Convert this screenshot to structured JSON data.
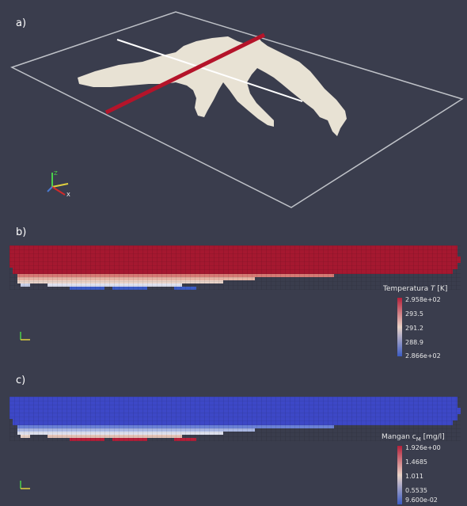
{
  "panels": {
    "a": {
      "label": "a)"
    },
    "b": {
      "label": "b)"
    },
    "c": {
      "label": "c)"
    }
  },
  "legend_temperature": {
    "title_prefix": "Temperatura ",
    "title_var": "T",
    "title_unit": " [K]",
    "ticks": [
      "2.958e+02",
      "293.5",
      "291.2",
      "288.9",
      "2.866e+02"
    ],
    "colors": [
      "#b4203a",
      "#e9d3c8",
      "#3b5bc4"
    ]
  },
  "legend_mangan": {
    "title_prefix": "Mangan c",
    "title_sub": "M",
    "title_unit": " [mg/l]",
    "ticks": [
      "1.926e+00",
      "1.4685",
      "1.011",
      "0.5535",
      "9.600e-02"
    ],
    "colors": [
      "#b4203a",
      "#e9d3c8",
      "#3b5bc4"
    ]
  },
  "axes_icons": {
    "z_label": "Z",
    "y_label": "Y",
    "x_label": "X"
  }
}
